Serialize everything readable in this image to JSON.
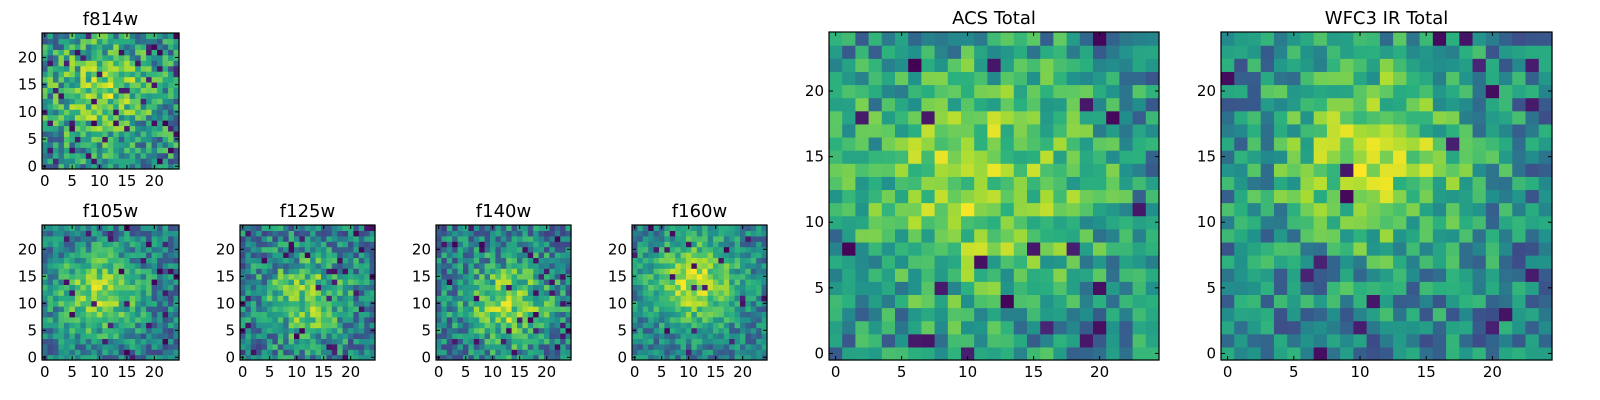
{
  "figure": {
    "background": "#ffffff",
    "colormap": "viridis"
  },
  "chart_data": [
    {
      "type": "heatmap",
      "title": "f814w",
      "rows": 25,
      "cols": 25,
      "xlim": [
        -0.5,
        24.5
      ],
      "ylim": [
        -0.5,
        24.5
      ],
      "xticks": [
        0,
        5,
        10,
        15,
        20
      ],
      "yticks": [
        0,
        5,
        10,
        15,
        20
      ],
      "seed": 814,
      "peak": [
        11,
        14
      ],
      "sigma": 7,
      "amplitude": 0.28,
      "base": 0.5,
      "noise": 0.24,
      "dead_fraction": 0.05
    },
    {
      "type": "heatmap",
      "title": "f105w",
      "rows": 25,
      "cols": 25,
      "xlim": [
        -0.5,
        24.5
      ],
      "ylim": [
        -0.5,
        24.5
      ],
      "xticks": [
        0,
        5,
        10,
        15,
        20
      ],
      "yticks": [
        0,
        5,
        10,
        15,
        20
      ],
      "seed": 105,
      "peak": [
        10,
        12
      ],
      "sigma": 6,
      "amplitude": 0.4,
      "base": 0.42,
      "noise": 0.18,
      "dead_fraction": 0.04
    },
    {
      "type": "heatmap",
      "title": "f125w",
      "rows": 25,
      "cols": 25,
      "xlim": [
        -0.5,
        24.5
      ],
      "ylim": [
        -0.5,
        24.5
      ],
      "xticks": [
        0,
        5,
        10,
        15,
        20
      ],
      "yticks": [
        0,
        5,
        10,
        15,
        20
      ],
      "seed": 125,
      "peak": [
        12,
        11
      ],
      "sigma": 6,
      "amplitude": 0.36,
      "base": 0.42,
      "noise": 0.22,
      "dead_fraction": 0.05
    },
    {
      "type": "heatmap",
      "title": "f140w",
      "rows": 25,
      "cols": 25,
      "xlim": [
        -0.5,
        24.5
      ],
      "ylim": [
        -0.5,
        24.5
      ],
      "xticks": [
        0,
        5,
        10,
        15,
        20
      ],
      "yticks": [
        0,
        5,
        10,
        15,
        20
      ],
      "seed": 140,
      "peak": [
        13,
        10
      ],
      "sigma": 6,
      "amplitude": 0.4,
      "base": 0.42,
      "noise": 0.22,
      "dead_fraction": 0.05
    },
    {
      "type": "heatmap",
      "title": "f160w",
      "rows": 25,
      "cols": 25,
      "xlim": [
        -0.5,
        24.5
      ],
      "ylim": [
        -0.5,
        24.5
      ],
      "xticks": [
        0,
        5,
        10,
        15,
        20
      ],
      "yticks": [
        0,
        5,
        10,
        15,
        20
      ],
      "seed": 160,
      "peak": [
        11,
        14
      ],
      "sigma": 6,
      "amplitude": 0.42,
      "base": 0.45,
      "noise": 0.16,
      "dead_fraction": 0.03
    },
    {
      "type": "heatmap",
      "title": "ACS Total",
      "rows": 25,
      "cols": 25,
      "xlim": [
        -0.5,
        24.5
      ],
      "ylim": [
        -0.5,
        24.5
      ],
      "xticks": [
        0,
        5,
        10,
        15,
        20
      ],
      "yticks": [
        0,
        5,
        10,
        15,
        20
      ],
      "seed": 901,
      "peak": [
        11,
        13
      ],
      "sigma": 7,
      "amplitude": 0.32,
      "base": 0.5,
      "noise": 0.2,
      "dead_fraction": 0.03
    },
    {
      "type": "heatmap",
      "title": "WFC3 IR Total",
      "rows": 25,
      "cols": 25,
      "xlim": [
        -0.5,
        24.5
      ],
      "ylim": [
        -0.5,
        24.5
      ],
      "xticks": [
        0,
        5,
        10,
        15,
        20
      ],
      "yticks": [
        0,
        5,
        10,
        15,
        20
      ],
      "seed": 902,
      "peak": [
        11,
        15
      ],
      "sigma": 6,
      "amplitude": 0.4,
      "base": 0.45,
      "noise": 0.2,
      "dead_fraction": 0.04
    }
  ]
}
